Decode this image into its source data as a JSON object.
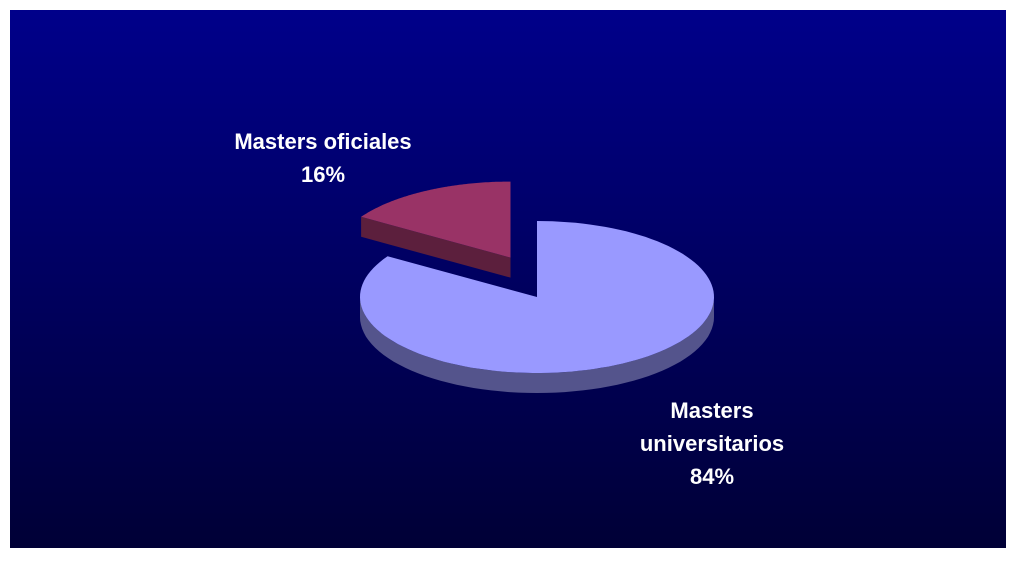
{
  "chart_data": {
    "type": "pie",
    "three_d": true,
    "categories": [
      "Masters universitarios",
      "Masters oficiales"
    ],
    "values": [
      84,
      16
    ],
    "value_labels": [
      "84%",
      "16%"
    ],
    "colors": [
      "#9999ff",
      "#993366"
    ],
    "exploded": [
      false,
      true
    ]
  }
}
